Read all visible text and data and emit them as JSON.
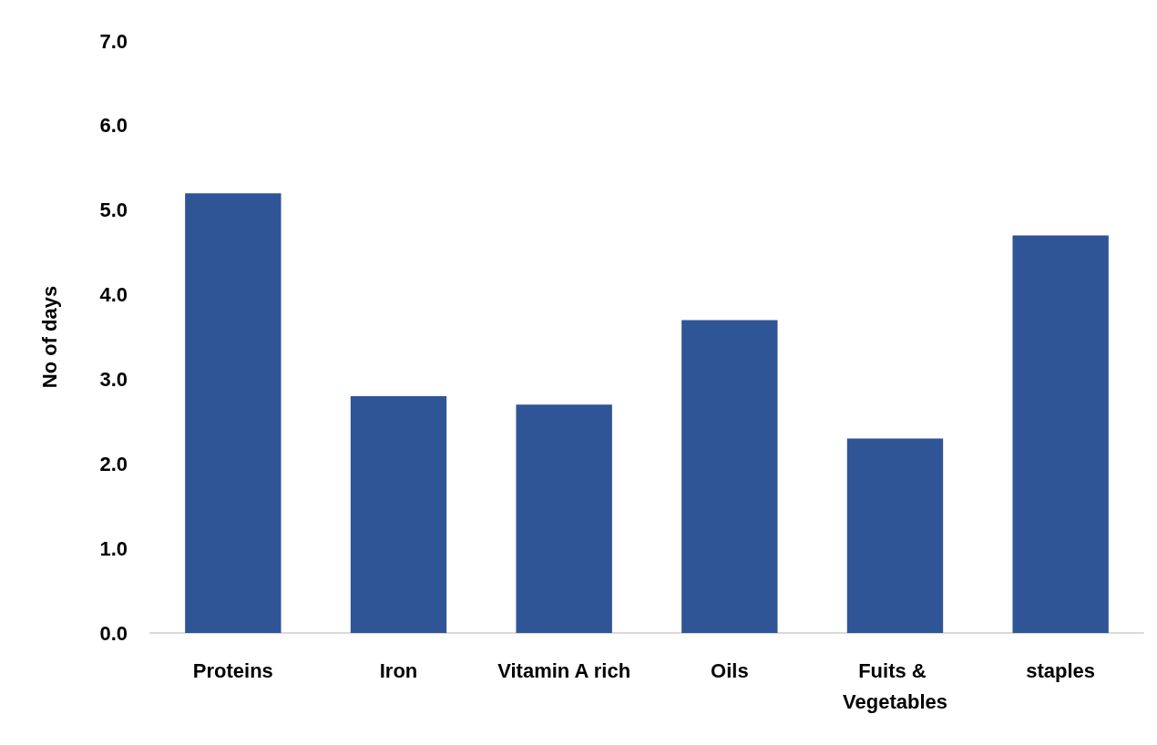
{
  "chart_data": {
    "type": "bar",
    "ylabel": "No of days",
    "categories": [
      "Proteins",
      "Iron",
      "Vitamin A rich",
      "Oils",
      "Fuits & Vegetables",
      "staples"
    ],
    "values": [
      5.2,
      2.8,
      2.7,
      3.7,
      2.3,
      4.7
    ],
    "color": "#2f5597",
    "ylim": [
      0,
      7
    ],
    "yticks": [
      {
        "value": 0,
        "label": "0.0"
      },
      {
        "value": 1,
        "label": "1.0"
      },
      {
        "value": 2,
        "label": "2.0"
      },
      {
        "value": 3,
        "label": "3.0"
      },
      {
        "value": 4,
        "label": "4.0"
      },
      {
        "value": 5,
        "label": "5.0"
      },
      {
        "value": 6,
        "label": "6.0"
      },
      {
        "value": 7,
        "label": "7.0"
      }
    ],
    "grid": false
  }
}
